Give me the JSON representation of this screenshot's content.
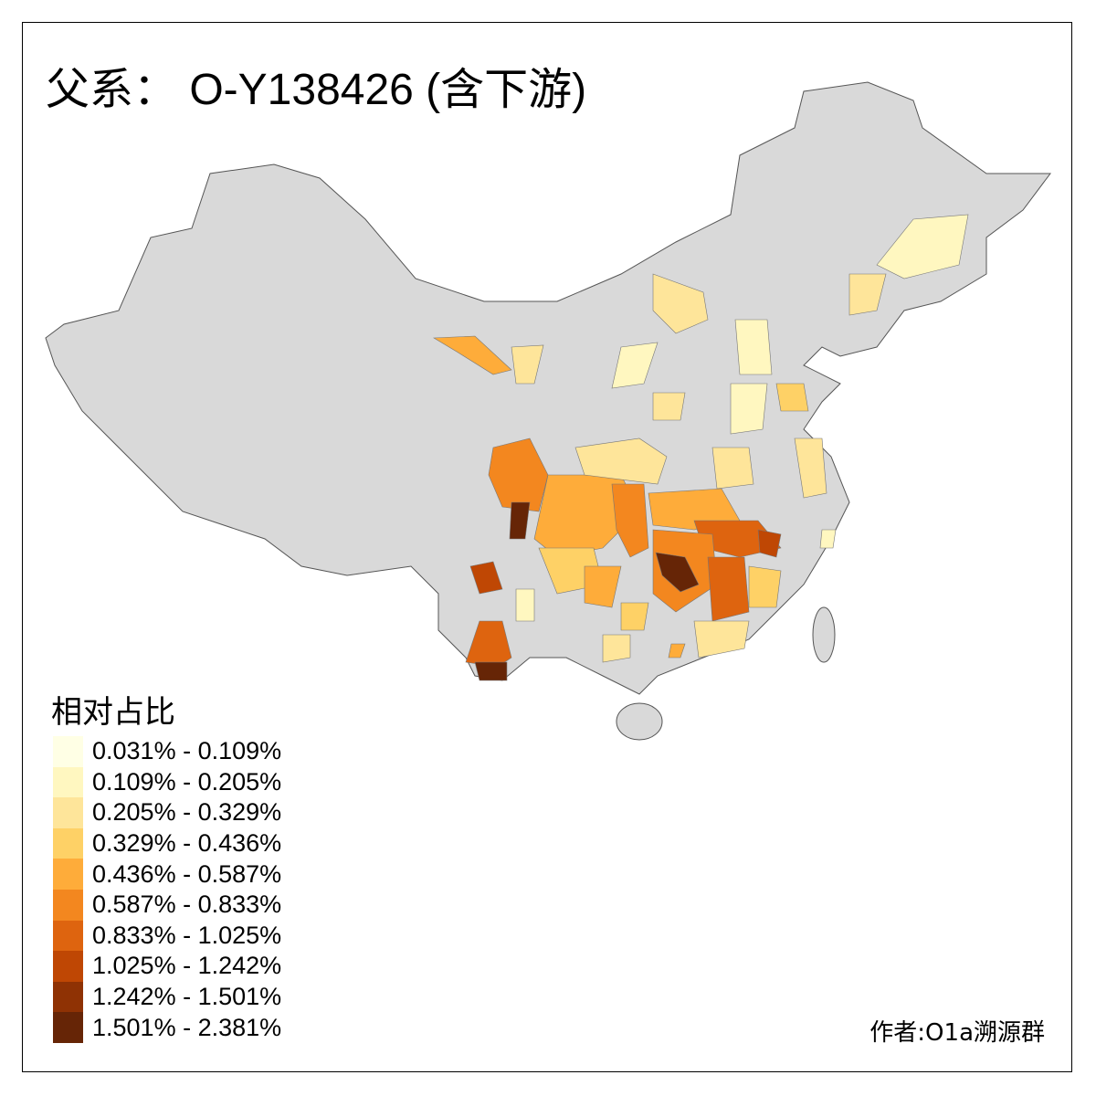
{
  "title": "父系： O-Y138426 (含下游)",
  "legend": {
    "title": "相对占比",
    "items": [
      {
        "label": "0.031% - 0.109%",
        "color": "#FFFFE5"
      },
      {
        "label": "0.109% - 0.205%",
        "color": "#FFF7C0"
      },
      {
        "label": "0.205% - 0.329%",
        "color": "#FEE59A"
      },
      {
        "label": "0.329% - 0.436%",
        "color": "#FED166"
      },
      {
        "label": "0.436% - 0.587%",
        "color": "#FEAC3A"
      },
      {
        "label": "0.587% - 0.833%",
        "color": "#F3871F"
      },
      {
        "label": "0.833% - 1.025%",
        "color": "#DE640F"
      },
      {
        "label": "1.025% - 1.242%",
        "color": "#BF4704"
      },
      {
        "label": "1.242% - 1.501%",
        "color": "#8F3204"
      },
      {
        "label": "1.501% - 2.381%",
        "color": "#662506"
      }
    ]
  },
  "no_data_color": "#D9D9D9",
  "credit": "作者:O1a溯源群"
}
